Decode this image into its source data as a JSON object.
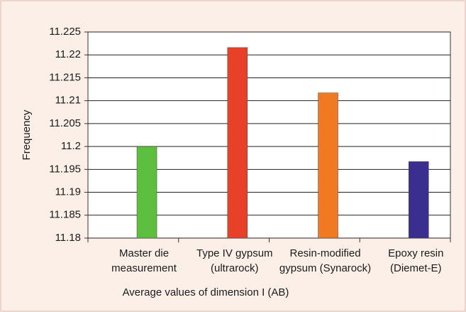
{
  "chart_data": {
    "type": "bar",
    "y_label": "Frequency",
    "x_label": "Average values of dimension I (AB)",
    "categories": [
      [
        "Master die",
        "measurement"
      ],
      [
        "Type IV gypsum",
        "(ultrarock)"
      ],
      [
        "Resin-modified",
        "gypsum (Synarock)"
      ],
      [
        "Epoxy resin",
        "(Diemet-E)"
      ]
    ],
    "values": [
      11.2,
      11.2216,
      11.2117,
      11.1967
    ],
    "colors": [
      "#5cbf3e",
      "#e8412a",
      "#f07a22",
      "#3a2f8f"
    ],
    "ylim": [
      11.18,
      11.225
    ],
    "yticks": [
      11.18,
      11.185,
      11.19,
      11.195,
      11.2,
      11.205,
      11.21,
      11.215,
      11.22,
      11.225
    ],
    "grid": true
  }
}
